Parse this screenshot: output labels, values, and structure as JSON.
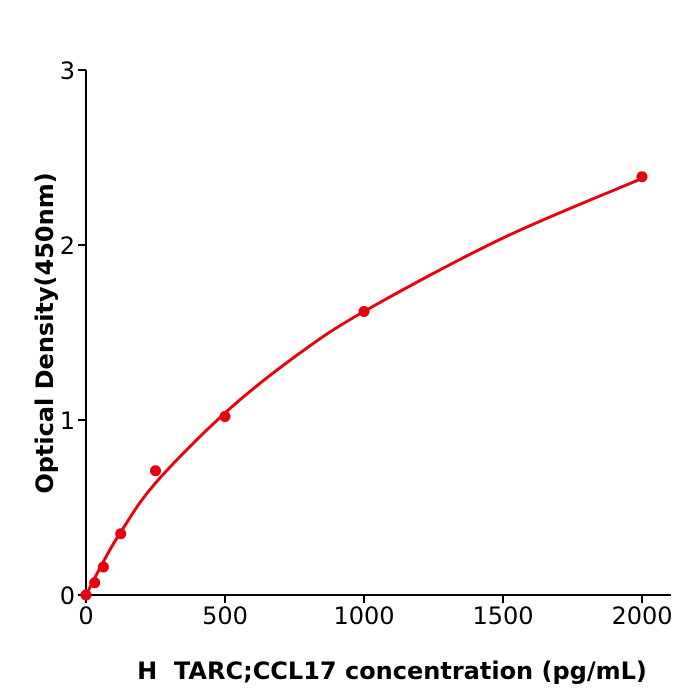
{
  "chart_data": {
    "type": "scatter",
    "title": "",
    "xlabel": "H  TARC;CCL17 concentration (pg/mL)",
    "ylabel": "Optical Density(450nm)",
    "xlim": [
      0,
      2100
    ],
    "ylim": [
      0,
      3
    ],
    "xticks": [
      "0",
      "500",
      "1000",
      "1500",
      "2000"
    ],
    "yticks": [
      "0",
      "1",
      "2",
      "3"
    ],
    "grid": false,
    "color": "#e8000b",
    "points": {
      "x": [
        0,
        31.25,
        62.5,
        125,
        250,
        500,
        1000,
        2000
      ],
      "y": [
        0.0,
        0.07,
        0.16,
        0.35,
        0.71,
        1.02,
        1.62,
        2.39
      ]
    },
    "fit_curve": {
      "x": [
        0,
        62.5,
        125,
        250,
        500,
        750,
        1000,
        1500,
        2000
      ],
      "y": [
        0,
        0.19,
        0.36,
        0.64,
        1.04,
        1.36,
        1.62,
        2.04,
        2.38
      ]
    }
  }
}
